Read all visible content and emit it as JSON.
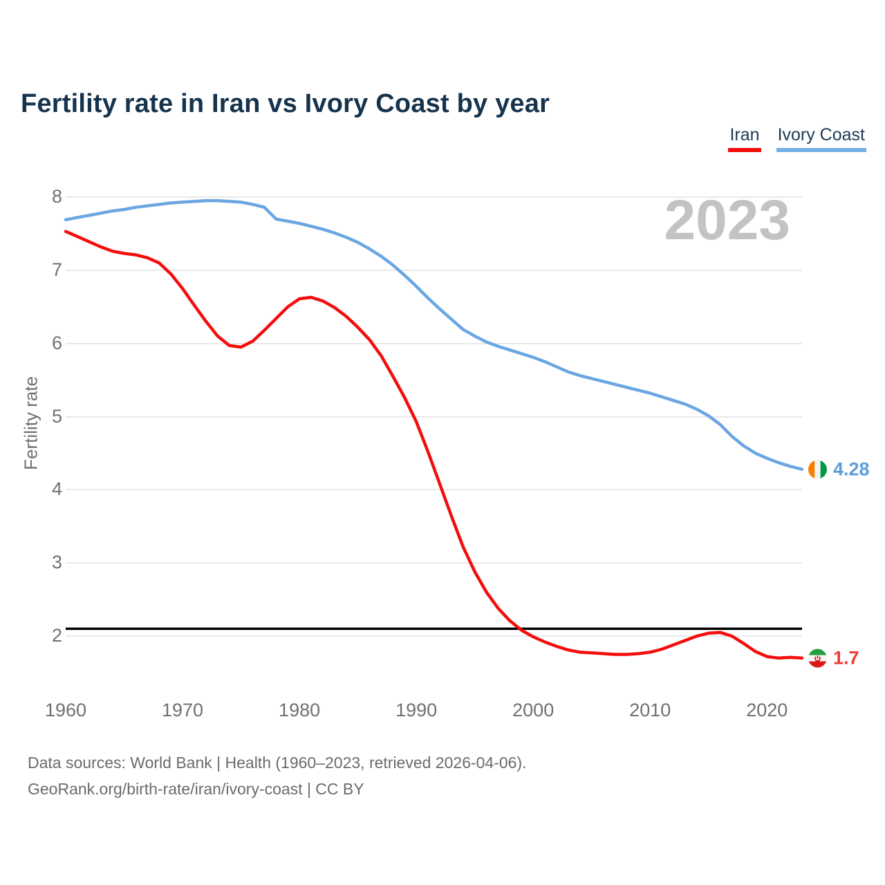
{
  "header": {
    "title": "Fertility rate in Iran vs Ivory Coast by year"
  },
  "legend": {
    "items": [
      {
        "label": "Iran",
        "color": "#f40d0d"
      },
      {
        "label": "Ivory Coast",
        "color": "#74b0e8"
      }
    ]
  },
  "watermark": {
    "year": "2023"
  },
  "colors": {
    "title": "#15334d",
    "axis_text": "#707070",
    "watermark": "#c3c3c3",
    "grid": "#e9e9e9",
    "reference_line": "#000000",
    "iran_line": "#f40d0d",
    "ivory_coast_line": "#6aa6e2"
  },
  "y_axis": {
    "label": "Fertility rate"
  },
  "end_labels": {
    "ivory_coast": {
      "flag": "ivory-coast-flag",
      "text_color": "#5b9ddb"
    },
    "iran": {
      "flag": "iran-flag",
      "text_color": "#ef3b33"
    }
  },
  "footer": {
    "line1": "Data sources: World Bank | Health (1960–2023, retrieved 2026-04-06).",
    "line2": "GeoRank.org/birth-rate/iran/ivory-coast | CC BY"
  },
  "chart_data": {
    "type": "line",
    "title": "Fertility rate in Iran vs Ivory Coast by year",
    "ylabel": "Fertility rate",
    "xlabel": "",
    "ylim": [
      2,
      8
    ],
    "xlim": [
      1960,
      2023
    ],
    "grid": true,
    "legend_position": "top-right",
    "y_ticks": [
      8,
      7,
      6,
      5,
      4,
      3,
      2
    ],
    "x_ticks": [
      1960,
      1970,
      1980,
      1990,
      2000,
      2010,
      2020
    ],
    "x": [
      1960,
      1961,
      1962,
      1963,
      1964,
      1965,
      1966,
      1967,
      1968,
      1969,
      1970,
      1971,
      1972,
      1973,
      1974,
      1975,
      1976,
      1977,
      1978,
      1979,
      1980,
      1981,
      1982,
      1983,
      1984,
      1985,
      1986,
      1987,
      1988,
      1989,
      1990,
      1991,
      1992,
      1993,
      1994,
      1995,
      1996,
      1997,
      1998,
      1999,
      2000,
      2001,
      2002,
      2003,
      2004,
      2005,
      2006,
      2007,
      2008,
      2009,
      2010,
      2011,
      2012,
      2013,
      2014,
      2015,
      2016,
      2017,
      2018,
      2019,
      2020,
      2021,
      2022,
      2023
    ],
    "series": [
      {
        "name": "Iran",
        "color": "#f40d0d",
        "values": [
          7.53,
          7.46,
          7.39,
          7.32,
          7.26,
          7.23,
          7.21,
          7.17,
          7.1,
          6.95,
          6.75,
          6.52,
          6.3,
          6.1,
          5.97,
          5.95,
          6.03,
          6.18,
          6.34,
          6.5,
          6.61,
          6.63,
          6.58,
          6.49,
          6.37,
          6.22,
          6.05,
          5.83,
          5.55,
          5.26,
          4.93,
          4.52,
          4.08,
          3.64,
          3.22,
          2.88,
          2.6,
          2.38,
          2.21,
          2.08,
          1.99,
          1.92,
          1.86,
          1.81,
          1.78,
          1.77,
          1.76,
          1.75,
          1.75,
          1.76,
          1.78,
          1.82,
          1.88,
          1.94,
          2.0,
          2.04,
          2.05,
          2.0,
          1.9,
          1.79,
          1.72,
          1.7,
          1.71,
          1.7
        ]
      },
      {
        "name": "Ivory Coast",
        "color": "#6aa6e2",
        "values": [
          7.69,
          7.72,
          7.75,
          7.78,
          7.81,
          7.83,
          7.86,
          7.88,
          7.9,
          7.92,
          7.93,
          7.94,
          7.95,
          7.95,
          7.94,
          7.93,
          7.9,
          7.86,
          7.7,
          7.67,
          7.64,
          7.6,
          7.56,
          7.51,
          7.45,
          7.38,
          7.29,
          7.19,
          7.07,
          6.93,
          6.78,
          6.62,
          6.47,
          6.33,
          6.19,
          6.1,
          6.02,
          5.96,
          5.91,
          5.86,
          5.81,
          5.75,
          5.68,
          5.61,
          5.56,
          5.52,
          5.48,
          5.44,
          5.4,
          5.36,
          5.32,
          5.27,
          5.22,
          5.17,
          5.1,
          5.01,
          4.89,
          4.73,
          4.6,
          4.5,
          4.43,
          4.37,
          4.32,
          4.28
        ]
      }
    ],
    "reference_line": {
      "value": 2.1,
      "color": "#000000"
    },
    "end_labels": {
      "iran": {
        "value": 1.7
      },
      "ivory_coast": {
        "value": 4.28
      }
    }
  }
}
